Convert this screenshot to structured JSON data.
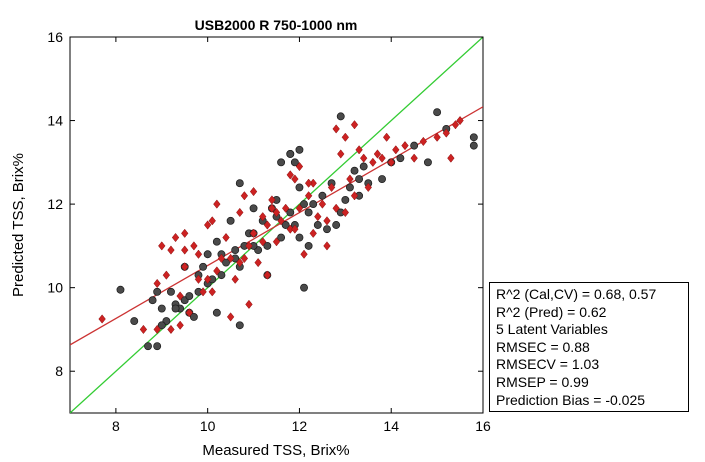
{
  "chart_data": {
    "type": "scatter",
    "title": "USB2000 R 750-1000 nm",
    "xlabel": "Measured TSS, Brix%",
    "ylabel": "Predicted TSS, Brix%",
    "xlim": [
      7,
      16
    ],
    "ylim": [
      7,
      16
    ],
    "xticks": [
      8,
      10,
      12,
      14,
      16
    ],
    "yticks": [
      8,
      10,
      12,
      14,
      16
    ],
    "grid": false,
    "legend_placement": "outside-right-bottom",
    "lines": [
      {
        "color": "#33cc33",
        "from": [
          7,
          7
        ],
        "to": [
          16,
          16
        ]
      },
      {
        "color": "#cc3333",
        "from": [
          7,
          8.63
        ],
        "to": [
          16,
          14.33
        ]
      }
    ],
    "series": [
      {
        "marker": "circle",
        "color": "#4a4a4a",
        "x": [
          8.1,
          8.4,
          8.7,
          8.8,
          8.9,
          9.0,
          9.1,
          9.2,
          9.3,
          9.4,
          9.5,
          9.5,
          9.6,
          9.7,
          9.8,
          9.8,
          9.9,
          10.0,
          10.0,
          10.1,
          10.2,
          10.3,
          10.3,
          10.4,
          10.5,
          10.6,
          10.6,
          10.7,
          10.7,
          10.8,
          10.9,
          11.0,
          11.0,
          11.1,
          11.2,
          11.3,
          11.3,
          11.4,
          11.5,
          11.5,
          11.6,
          11.7,
          11.8,
          11.8,
          11.9,
          12.0,
          12.0,
          12.1,
          12.2,
          12.2,
          12.3,
          12.4,
          12.5,
          12.6,
          12.7,
          12.8,
          12.9,
          13.0,
          13.1,
          13.2,
          13.3,
          13.4,
          13.5,
          13.8,
          14.0,
          14.2,
          14.5,
          14.8,
          15.0,
          15.2,
          15.8,
          15.8,
          9.0,
          9.3,
          9.6,
          10.2,
          10.7,
          11.0,
          11.6,
          12.1,
          11.9,
          11.8,
          12.0,
          12.9,
          13.3,
          8.9
        ],
        "y": [
          9.95,
          9.2,
          8.6,
          9.7,
          9.9,
          9.5,
          9.2,
          9.9,
          9.6,
          9.5,
          9.7,
          10.5,
          9.4,
          9.3,
          9.9,
          10.3,
          10.5,
          10.1,
          10.8,
          10.2,
          11.1,
          10.3,
          10.8,
          10.6,
          11.6,
          10.7,
          10.9,
          10.5,
          12.5,
          11.0,
          11.3,
          11.3,
          11.9,
          10.9,
          11.6,
          10.3,
          11.0,
          11.9,
          11.7,
          12.1,
          11.2,
          11.5,
          11.8,
          13.2,
          11.5,
          11.2,
          12.4,
          12.0,
          11.0,
          11.8,
          12.0,
          11.5,
          12.2,
          11.4,
          12.5,
          11.5,
          11.8,
          12.1,
          12.4,
          12.8,
          12.2,
          12.9,
          12.5,
          12.6,
          13.0,
          13.1,
          13.4,
          13.0,
          14.2,
          13.8,
          13.4,
          13.6,
          9.1,
          9.5,
          9.8,
          9.4,
          9.1,
          11.0,
          13.0,
          10.0,
          13.0,
          13.2,
          13.3,
          14.1,
          12.6,
          8.6
        ]
      },
      {
        "marker": "diamond",
        "color": "#cc2222",
        "x": [
          7.7,
          8.6,
          8.9,
          9.0,
          9.1,
          9.2,
          9.3,
          9.4,
          9.5,
          9.5,
          9.6,
          9.7,
          9.8,
          9.9,
          10.0,
          10.0,
          10.1,
          10.2,
          10.2,
          10.3,
          10.4,
          10.5,
          10.6,
          10.7,
          10.8,
          10.8,
          10.9,
          11.0,
          11.0,
          11.1,
          11.2,
          11.3,
          11.3,
          11.4,
          11.5,
          11.5,
          11.6,
          11.7,
          11.8,
          11.8,
          11.9,
          12.0,
          12.0,
          12.1,
          12.2,
          12.3,
          12.3,
          12.4,
          12.5,
          12.6,
          12.7,
          12.8,
          12.9,
          13.0,
          13.0,
          13.1,
          13.2,
          13.3,
          13.4,
          13.5,
          13.6,
          13.7,
          13.8,
          13.9,
          14.0,
          14.1,
          14.3,
          14.5,
          14.7,
          15.0,
          15.2,
          15.3,
          15.4,
          15.5,
          9.2,
          9.4,
          9.8,
          10.5,
          10.9,
          11.2,
          11.9,
          12.2,
          12.6,
          13.2,
          10.1,
          10.7,
          11.4,
          12.8,
          8.9,
          9.5
        ],
        "y": [
          9.25,
          9.0,
          10.1,
          11.0,
          10.3,
          9.0,
          11.2,
          9.1,
          11.3,
          10.5,
          9.4,
          11.0,
          10.8,
          9.9,
          10.2,
          11.5,
          11.6,
          10.4,
          12.0,
          10.7,
          11.2,
          10.7,
          10.2,
          11.8,
          10.7,
          12.2,
          11.0,
          11.3,
          12.3,
          10.6,
          11.7,
          11.5,
          10.3,
          12.1,
          11.1,
          11.8,
          11.6,
          11.9,
          11.4,
          12.7,
          11.4,
          11.9,
          12.9,
          10.8,
          12.2,
          11.3,
          12.5,
          11.7,
          12.0,
          11.0,
          12.4,
          11.9,
          13.2,
          11.8,
          13.6,
          12.6,
          12.2,
          13.3,
          13.1,
          12.4,
          13.0,
          13.2,
          13.1,
          13.6,
          13.0,
          13.3,
          13.4,
          13.1,
          13.5,
          13.6,
          13.7,
          13.1,
          13.9,
          14.0,
          10.9,
          9.8,
          10.2,
          9.3,
          9.6,
          11.1,
          12.6,
          12.5,
          11.6,
          13.9,
          9.9,
          10.6,
          11.9,
          13.8,
          9.0,
          10.9
        ]
      }
    ],
    "legend": [
      "R^2 (Cal,CV) = 0.68, 0.57",
      "R^2 (Pred) = 0.62",
      "5 Latent Variables",
      "RMSEC = 0.88",
      "RMSECV = 1.03",
      "RMSEP = 0.99",
      "Prediction Bias = -0.025"
    ]
  }
}
